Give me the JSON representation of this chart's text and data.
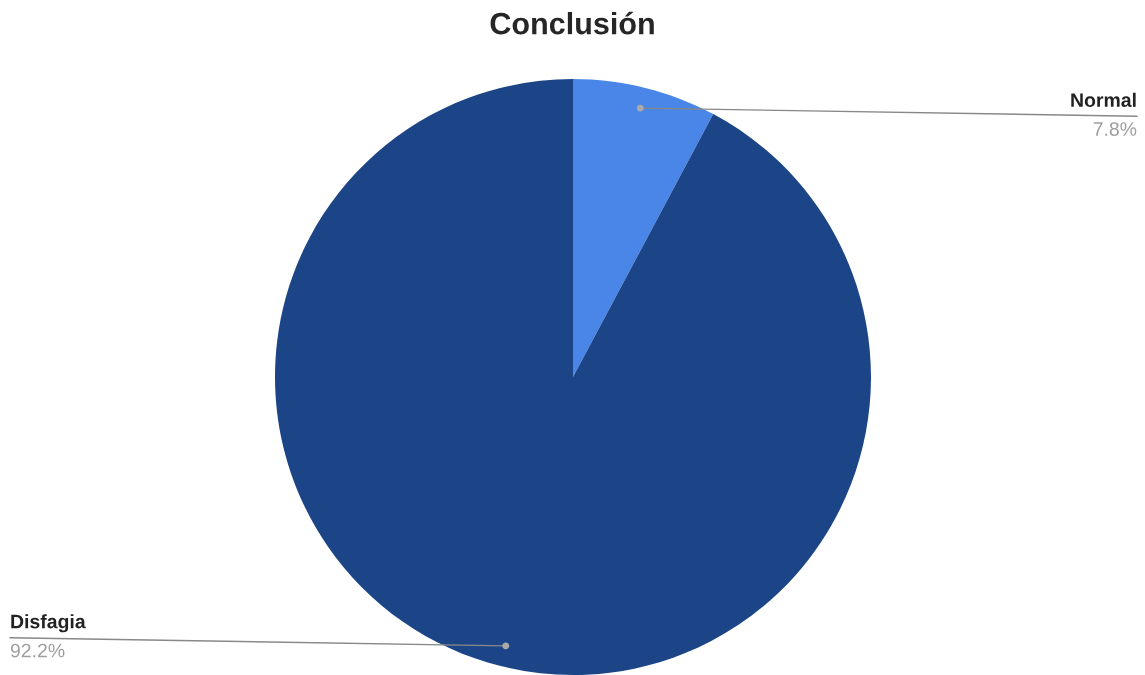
{
  "chart_data": {
    "type": "pie",
    "title": "Conclusión",
    "categories": [
      "Normal",
      "Disfagia"
    ],
    "values": [
      7.8,
      92.2
    ],
    "colors": [
      "#4a86e8",
      "#1c4587"
    ],
    "value_labels": [
      "7.8%",
      "92.2%"
    ],
    "legend": false
  }
}
